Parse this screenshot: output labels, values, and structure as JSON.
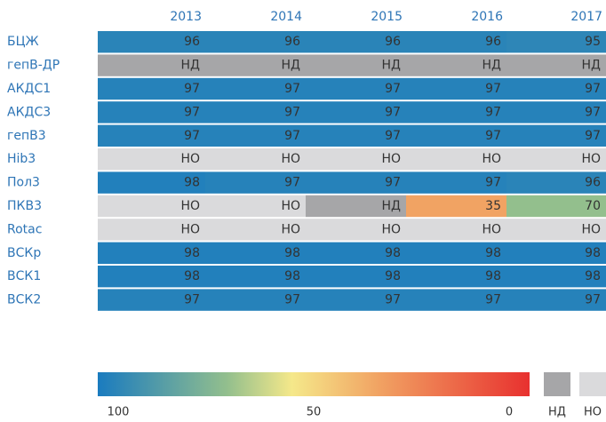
{
  "chart_data": {
    "type": "heatmap",
    "x": [
      "2013",
      "2014",
      "2015",
      "2016",
      "2017"
    ],
    "categories": [
      "БЦЖ",
      "гепВ-ДР",
      "АКДС1",
      "АКДС3",
      "гепВ3",
      "Hib3",
      "Пол3",
      "ПКВ3",
      "Rotac",
      "ВСКр",
      "ВСК1",
      "ВСК2"
    ],
    "values": [
      [
        96,
        96,
        96,
        96,
        95
      ],
      [
        "НД",
        "НД",
        "НД",
        "НД",
        "НД"
      ],
      [
        97,
        97,
        97,
        97,
        97
      ],
      [
        97,
        97,
        97,
        97,
        97
      ],
      [
        97,
        97,
        97,
        97,
        97
      ],
      [
        "НО",
        "НО",
        "НО",
        "НО",
        "НО"
      ],
      [
        98,
        97,
        97,
        97,
        96
      ],
      [
        "НО",
        "НО",
        "НД",
        35,
        70
      ],
      [
        "НО",
        "НО",
        "НО",
        "НО",
        "НО"
      ],
      [
        98,
        98,
        98,
        98,
        98
      ],
      [
        98,
        98,
        98,
        98,
        98
      ],
      [
        97,
        97,
        97,
        97,
        97
      ]
    ],
    "colorscale": [
      [
        0,
        "#e8312f"
      ],
      [
        35,
        "#f1a363"
      ],
      [
        55,
        "#f5e88a"
      ],
      [
        70,
        "#93bf8d"
      ],
      [
        100,
        "#1a7bbf"
      ]
    ],
    "colorbar_ticks": [
      100,
      50,
      0
    ],
    "missing": [
      {
        "label": "НД",
        "color": "#a6a6a8"
      },
      {
        "label": "НО",
        "color": "#dadadc"
      }
    ]
  }
}
